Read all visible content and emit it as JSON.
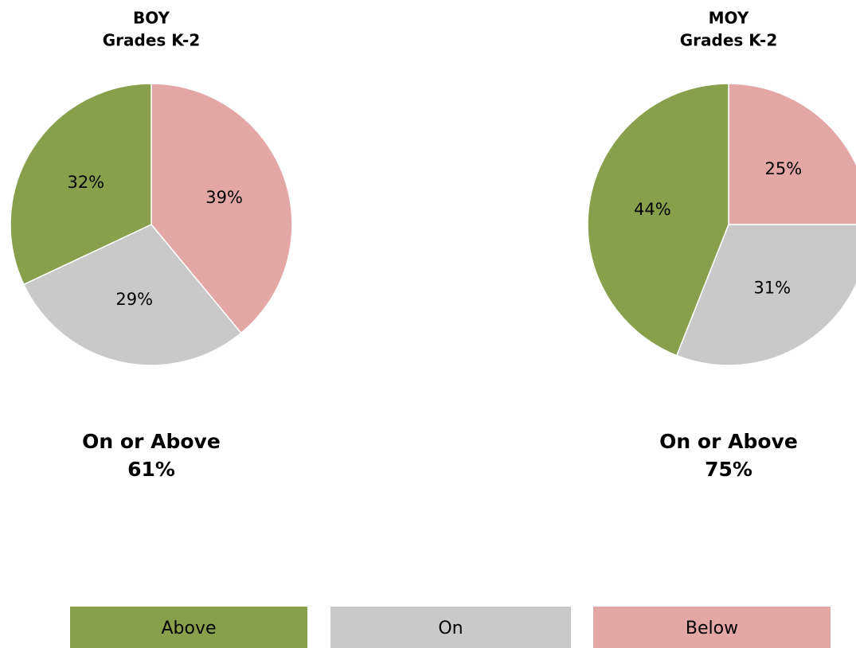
{
  "chart_data": [
    {
      "type": "pie",
      "title": "BOY",
      "subtitle": "Grades K-2",
      "categories": [
        "Below",
        "On",
        "Above"
      ],
      "values": [
        39,
        29,
        32
      ],
      "value_labels": [
        "39%",
        "29%",
        "32%"
      ],
      "colors": [
        "#e3a7a6",
        "#c9c9c9",
        "#88a04b"
      ],
      "annotation": [
        "On or Above",
        "61%"
      ]
    },
    {
      "type": "pie",
      "title": "MOY",
      "subtitle": "Grades K-2",
      "categories": [
        "Below",
        "On",
        "Above"
      ],
      "values": [
        25,
        31,
        44
      ],
      "value_labels": [
        "25%",
        "31%",
        "44%"
      ],
      "colors": [
        "#e3a7a6",
        "#c9c9c9",
        "#88a04b"
      ],
      "annotation": [
        "On or Above",
        "75%"
      ]
    }
  ]
}
